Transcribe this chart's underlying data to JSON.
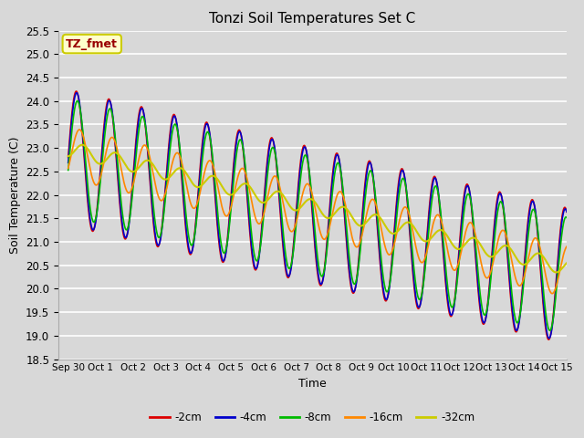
{
  "title": "Tonzi Soil Temperatures Set C",
  "xlabel": "Time",
  "ylabel": "Soil Temperature (C)",
  "ylim": [
    18.5,
    25.5
  ],
  "annotation_text": "TZ_fmet",
  "annotation_bg": "#ffffcc",
  "annotation_border": "#cccc00",
  "annotation_text_color": "#990000",
  "background_color": "#d8d8d8",
  "plot_bg": "#d8d8d8",
  "grid_color": "#ffffff",
  "series": [
    {
      "label": "-2cm",
      "color": "#dd0000",
      "lw": 1.2
    },
    {
      "label": "-4cm",
      "color": "#0000cc",
      "lw": 1.2
    },
    {
      "label": "-8cm",
      "color": "#00bb00",
      "lw": 1.2
    },
    {
      "label": "-16cm",
      "color": "#ff8800",
      "lw": 1.2
    },
    {
      "label": "-32cm",
      "color": "#cccc00",
      "lw": 1.5
    }
  ],
  "xtick_labels": [
    "Sep 30",
    "Oct 1",
    "Oct 2",
    "Oct 3",
    "Oct 4",
    "Oct 5",
    "Oct 6",
    "Oct 7",
    "Oct 8",
    "Oct 9",
    "Oct 10",
    "Oct 11",
    "Oct 12",
    "Oct 13",
    "Oct 14",
    "Oct 15"
  ],
  "xtick_positions": [
    0,
    1,
    2,
    3,
    4,
    5,
    6,
    7,
    8,
    9,
    10,
    11,
    12,
    13,
    14,
    15
  ]
}
